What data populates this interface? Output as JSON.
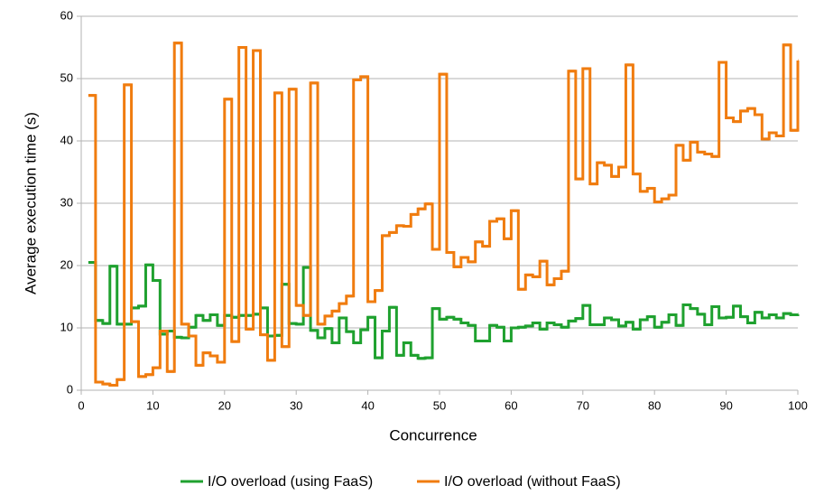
{
  "chart_data": {
    "type": "step",
    "xlabel": "Concurrence",
    "ylabel": "Average execution time (s)",
    "x": [
      1,
      2,
      3,
      4,
      5,
      6,
      7,
      8,
      9,
      10,
      11,
      12,
      13,
      14,
      15,
      16,
      17,
      18,
      19,
      20,
      21,
      22,
      23,
      24,
      25,
      26,
      27,
      28,
      29,
      30,
      31,
      32,
      33,
      34,
      35,
      36,
      37,
      38,
      39,
      40,
      41,
      42,
      43,
      44,
      45,
      46,
      47,
      48,
      49,
      50,
      51,
      52,
      53,
      54,
      55,
      56,
      57,
      58,
      59,
      60,
      61,
      62,
      63,
      64,
      65,
      66,
      67,
      68,
      69,
      70,
      71,
      72,
      73,
      74,
      75,
      76,
      77,
      78,
      79,
      80,
      81,
      82,
      83,
      84,
      85,
      86,
      87,
      88,
      89,
      90,
      91,
      92,
      93,
      94,
      95,
      96,
      97,
      98,
      99,
      100
    ],
    "series": [
      {
        "name": "I/O overload (using FaaS)",
        "color": "#1fa12f",
        "values": [
          20.5,
          11.2,
          10.7,
          19.9,
          10.6,
          10.6,
          13.2,
          13.5,
          20.1,
          17.6,
          9.0,
          9.5,
          8.5,
          8.4,
          10.1,
          12.0,
          11.2,
          12.1,
          10.4,
          12.0,
          11.7,
          12.0,
          12.0,
          12.2,
          13.2,
          8.7,
          8.8,
          17.0,
          10.7,
          10.6,
          19.7,
          9.6,
          8.4,
          9.9,
          7.6,
          11.6,
          9.4,
          7.6,
          9.7,
          11.7,
          5.2,
          9.5,
          13.3,
          5.6,
          7.6,
          5.6,
          5.1,
          5.2,
          13.1,
          11.4,
          11.7,
          11.4,
          10.8,
          10.4,
          7.9,
          7.9,
          10.4,
          10.1,
          7.9,
          10.0,
          10.1,
          10.3,
          10.8,
          9.8,
          10.8,
          10.5,
          10.1,
          11.1,
          11.5,
          13.6,
          10.5,
          10.5,
          11.6,
          11.3,
          10.3,
          10.9,
          9.8,
          11.3,
          11.8,
          10.1,
          10.9,
          12.1,
          10.4,
          13.7,
          13.1,
          12.2,
          10.5,
          13.4,
          11.6,
          11.7,
          13.5,
          11.8,
          10.8,
          12.5,
          11.6,
          12.1,
          11.6,
          12.3,
          12.1,
          12.2
        ]
      },
      {
        "name": "I/O overload (without FaaS)",
        "color": "#f07c0f",
        "values": [
          47.3,
          1.3,
          1.0,
          0.8,
          1.7,
          49.0,
          11.0,
          2.2,
          2.5,
          3.6,
          9.5,
          3.0,
          55.7,
          10.6,
          8.7,
          4.0,
          6.0,
          5.5,
          4.5,
          46.7,
          7.8,
          55.0,
          9.8,
          54.5,
          8.9,
          4.8,
          47.7,
          7.0,
          48.3,
          13.6,
          12.0,
          49.3,
          10.6,
          11.9,
          12.7,
          13.9,
          15.1,
          49.8,
          50.3,
          14.2,
          16.0,
          24.8,
          25.3,
          26.4,
          26.3,
          28.2,
          29.1,
          29.9,
          22.6,
          50.7,
          22.1,
          19.8,
          21.3,
          20.6,
          23.8,
          23.1,
          27.1,
          27.5,
          24.3,
          28.8,
          16.2,
          18.5,
          18.2,
          20.7,
          16.9,
          17.9,
          19.1,
          51.2,
          33.9,
          51.6,
          33.1,
          36.5,
          36.1,
          34.3,
          35.8,
          52.2,
          34.7,
          31.9,
          32.4,
          30.2,
          30.7,
          31.3,
          39.3,
          36.9,
          39.8,
          38.2,
          37.9,
          37.5,
          52.6,
          43.7,
          43.1,
          44.8,
          45.2,
          44.2,
          40.3,
          41.3,
          40.8,
          55.4,
          41.7,
          52.9
        ]
      }
    ],
    "xlim": [
      0,
      100
    ],
    "xticks": [
      0,
      10,
      20,
      30,
      40,
      50,
      60,
      70,
      80,
      90,
      100
    ],
    "ylim": [
      0,
      60
    ],
    "yticks": [
      0,
      10,
      20,
      30,
      40,
      50,
      60
    ],
    "grid": true,
    "legend": "bottom"
  }
}
